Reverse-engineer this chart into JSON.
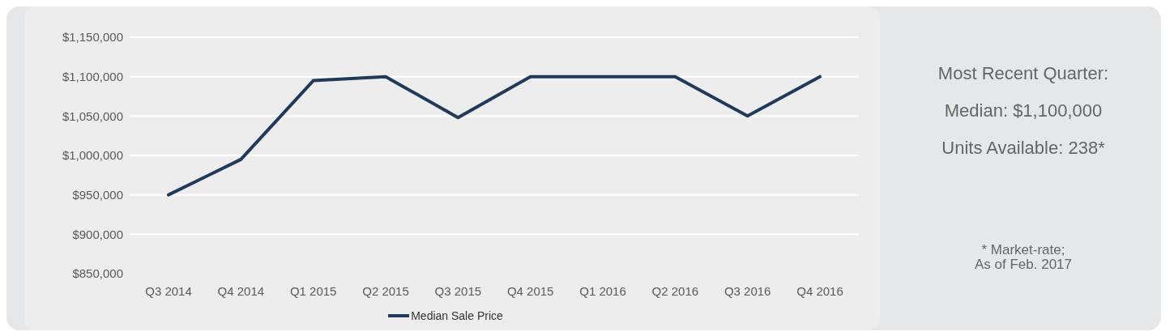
{
  "chart_data": {
    "type": "line",
    "categories": [
      "Q3 2014",
      "Q4 2014",
      "Q1 2015",
      "Q2 2015",
      "Q3 2015",
      "Q4 2015",
      "Q1 2016",
      "Q2 2016",
      "Q3 2016",
      "Q4 2016"
    ],
    "series": [
      {
        "name": "Median Sale Price",
        "color": "#203a5c",
        "values": [
          950000,
          995000,
          1095000,
          1100000,
          1048000,
          1100000,
          1100000,
          1100000,
          1050000,
          1100000
        ]
      }
    ],
    "ylim": [
      850000,
      1150000
    ],
    "yticks": [
      {
        "value": 850000,
        "label": "$850,000"
      },
      {
        "value": 900000,
        "label": "$900,000"
      },
      {
        "value": 950000,
        "label": "$950,000"
      },
      {
        "value": 1000000,
        "label": "$1,000,000"
      },
      {
        "value": 1050000,
        "label": "$1,050,000"
      },
      {
        "value": 1100000,
        "label": "$1,100,000"
      },
      {
        "value": 1150000,
        "label": "$1,150,000"
      }
    ],
    "grid": "y",
    "legend": "bottom",
    "marker": "none",
    "line_style": "solid",
    "annotations": [
      "Most Recent Quarter:",
      "Median: $1,100,000",
      "Units Available: 238*",
      "* Market-rate;\nAs of Feb. 2017"
    ]
  }
}
